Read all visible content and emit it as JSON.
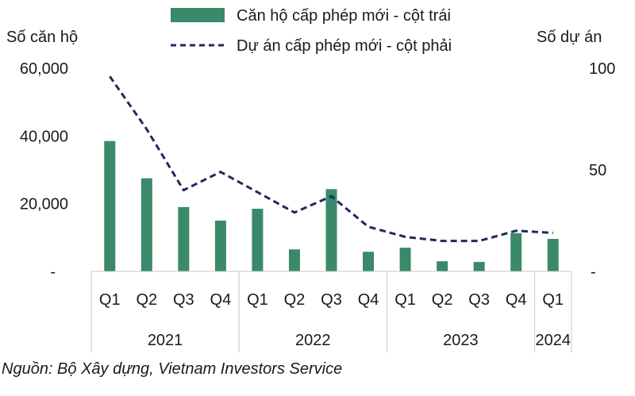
{
  "chart_data": {
    "type": "bar+line",
    "left_axis_title": "Số căn hộ",
    "right_axis_title": "Số dự án",
    "left_axis": {
      "range": [
        0,
        60000
      ],
      "ticks": [
        {
          "value": 0,
          "label": "-"
        },
        {
          "value": 20000,
          "label": "20,000"
        },
        {
          "value": 40000,
          "label": "40,000"
        },
        {
          "value": 60000,
          "label": "60,000"
        }
      ]
    },
    "right_axis": {
      "range": [
        0,
        100
      ],
      "ticks": [
        {
          "value": 0,
          "label": "-"
        },
        {
          "value": 50,
          "label": "50"
        },
        {
          "value": 100,
          "label": "100"
        }
      ]
    },
    "categories": [
      "Q1",
      "Q2",
      "Q3",
      "Q4",
      "Q1",
      "Q2",
      "Q3",
      "Q4",
      "Q1",
      "Q2",
      "Q3",
      "Q4",
      "Q1"
    ],
    "years": [
      {
        "label": "2021",
        "count": 4
      },
      {
        "label": "2022",
        "count": 4
      },
      {
        "label": "2023",
        "count": 4
      },
      {
        "label": "2024",
        "count": 1
      }
    ],
    "series": [
      {
        "name": "Căn hộ cấp phép mới - cột trái",
        "type": "bar",
        "axis": "left",
        "color": "#3a8a6a",
        "values": [
          38500,
          27500,
          19000,
          15000,
          18500,
          6500,
          24300,
          5800,
          7000,
          3000,
          2800,
          11300,
          9600
        ]
      },
      {
        "name": "Dự án cấp phép mới - cột phải",
        "type": "line",
        "axis": "right",
        "style": "dashed",
        "color": "#1f2a5c",
        "values": [
          96,
          70,
          40,
          49,
          39,
          29,
          37,
          22,
          17,
          15,
          15,
          20,
          19
        ]
      }
    ]
  },
  "source": "Nguồn: Bộ Xây dựng, Vietnam Investors Service"
}
